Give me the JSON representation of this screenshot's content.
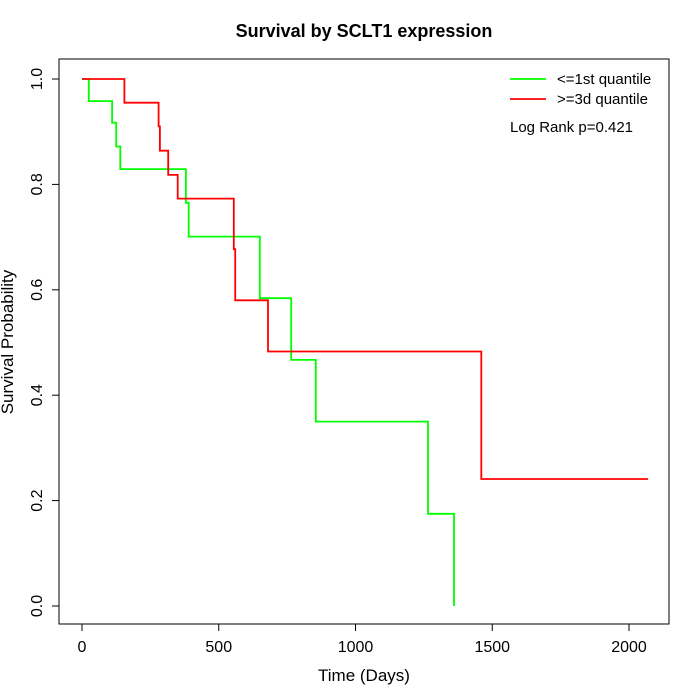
{
  "chart_data": {
    "type": "line",
    "step": true,
    "title": "Survival by SCLT1 expression",
    "xlabel": "Time (Days)",
    "ylabel": "Survival Probability",
    "xlim": [
      0,
      2070
    ],
    "ylim": [
      0,
      1.0
    ],
    "x_ticks": [
      0,
      500,
      1000,
      1500,
      2000
    ],
    "x_tick_labels": [
      "0",
      "500",
      "1000",
      "1500",
      "2000"
    ],
    "y_ticks": [
      0,
      0.2,
      0.4,
      0.6,
      0.8,
      1.0
    ],
    "y_tick_labels": [
      "0.0",
      "0.2",
      "0.4",
      "0.6",
      "0.8",
      "1.0"
    ],
    "grid": false,
    "legend_position": "top-right",
    "annotation": "Log Rank p=0.421",
    "series": [
      {
        "name": "<=1st quantile",
        "color": "#00ff00",
        "x": [
          0,
          25,
          110,
          125,
          140,
          380,
          390,
          650,
          765,
          855,
          1265,
          1360
        ],
        "y": [
          1.0,
          0.958,
          0.917,
          0.872,
          0.829,
          0.765,
          0.701,
          0.584,
          0.467,
          0.35,
          0.175,
          0.0
        ]
      },
      {
        "name": ">=3d quantile",
        "color": "#ff0000",
        "x": [
          0,
          155,
          280,
          285,
          315,
          350,
          555,
          560,
          680,
          1460,
          2070
        ],
        "y": [
          1.0,
          0.955,
          0.91,
          0.864,
          0.818,
          0.773,
          0.677,
          0.58,
          0.483,
          0.241,
          0.241
        ]
      }
    ]
  }
}
